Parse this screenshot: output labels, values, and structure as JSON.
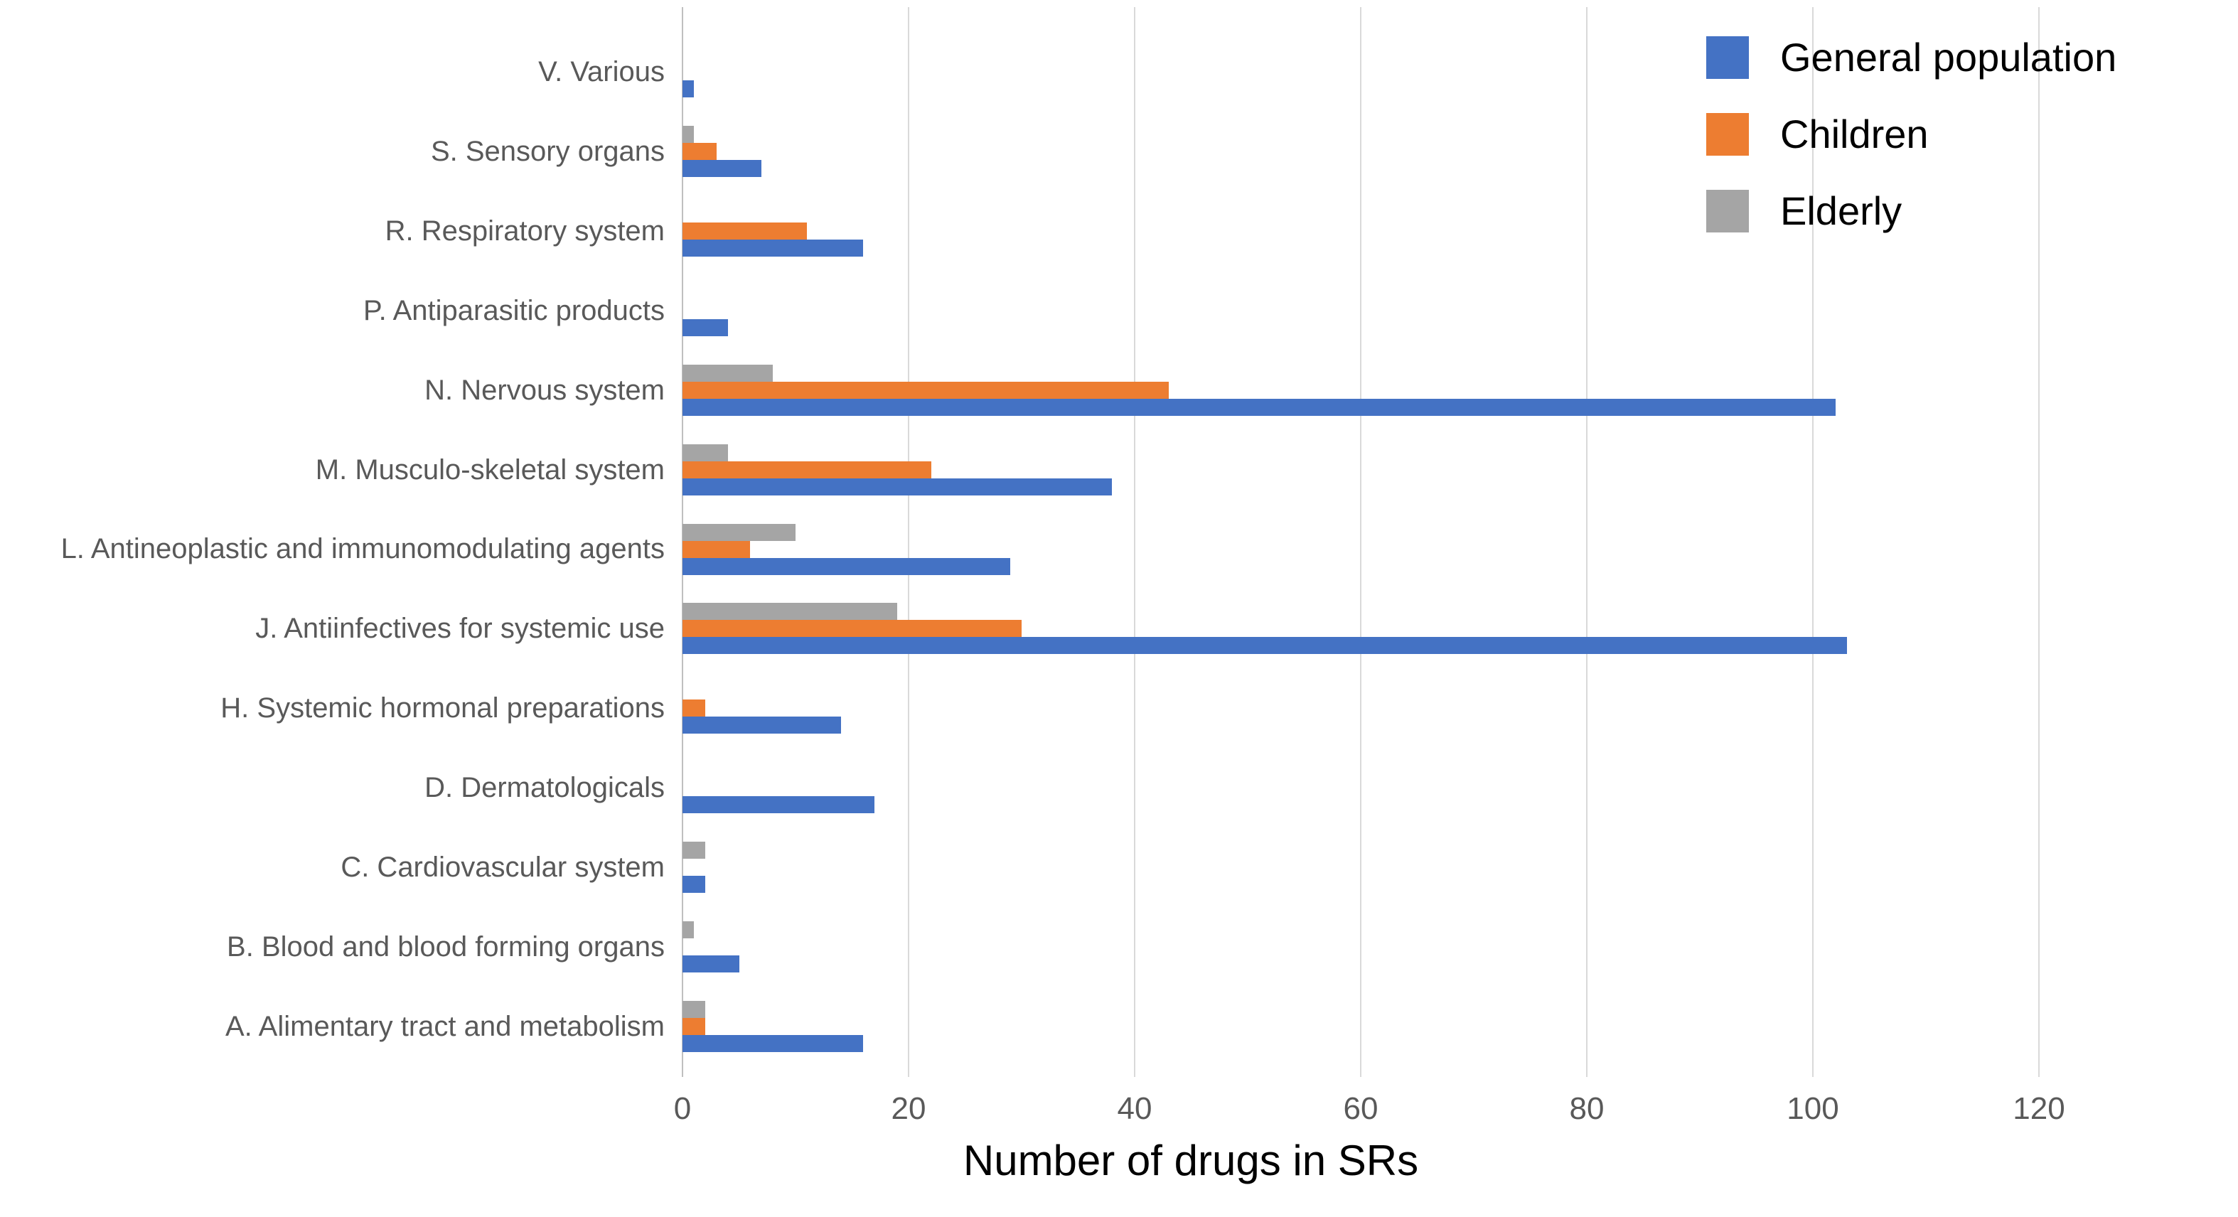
{
  "chart_data": {
    "type": "bar",
    "orientation": "horizontal",
    "title": "",
    "xlabel": "Number of drugs in SRs",
    "ylabel": "",
    "xlim": [
      0,
      126
    ],
    "xticks": [
      0,
      20,
      40,
      60,
      80,
      100,
      120
    ],
    "grid": true,
    "legend_position": "top-right",
    "categories": [
      "V. Various",
      "S. Sensory organs",
      "R. Respiratory system",
      "P. Antiparasitic products",
      "N. Nervous system",
      "M. Musculo-skeletal system",
      "L. Antineoplastic and immunomodulating agents",
      "J. Antiinfectives for systemic use",
      "H. Systemic hormonal preparations",
      "D. Dermatologicals",
      "C. Cardiovascular system",
      "B. Blood and blood forming organs",
      "A. Alimentary tract and metabolism"
    ],
    "series": [
      {
        "name": "General population",
        "color": "#4472C4",
        "values": [
          1,
          7,
          16,
          4,
          102,
          38,
          29,
          103,
          14,
          17,
          2,
          5,
          16
        ]
      },
      {
        "name": "Children",
        "color": "#ED7D31",
        "values": [
          0,
          3,
          11,
          0,
          43,
          22,
          6,
          30,
          2,
          0,
          0,
          0,
          2
        ]
      },
      {
        "name": "Elderly",
        "color": "#A5A5A5",
        "values": [
          0,
          1,
          0,
          0,
          8,
          4,
          10,
          19,
          0,
          0,
          2,
          1,
          2
        ]
      }
    ],
    "colors": {
      "gridline": "#D9D9D9",
      "axis_line": "#BFBFBF",
      "tick_label": "#595959",
      "category_label": "#595959",
      "legend_text": "#000000",
      "axis_title": "#000000"
    }
  }
}
